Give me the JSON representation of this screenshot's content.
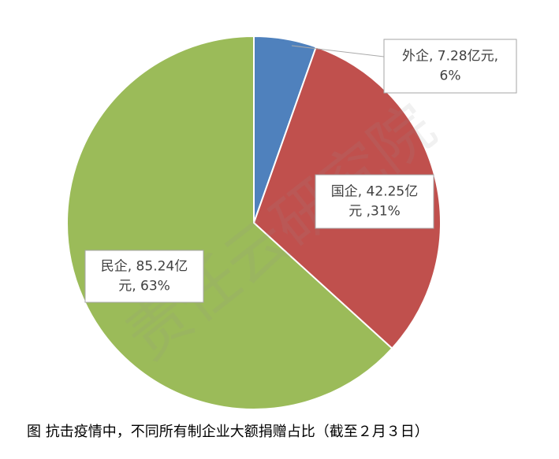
{
  "chart_data": {
    "type": "pie",
    "values": [
      7.28,
      42.25,
      85.24
    ],
    "value_labels": [
      [
        "外企, 7.28亿元,",
        "6%"
      ],
      [
        "国企, 42.25亿",
        "元 ,31%"
      ],
      [
        "民企, 85.24亿",
        "元, 63%"
      ]
    ],
    "colors": [
      "#4f81bd",
      "#c0504d",
      "#9bbb59"
    ],
    "watermark": "责任云研究院",
    "caption": "图  抗击疫情中，不同所有制企业大额捐赠占比（截至２月３日）"
  }
}
